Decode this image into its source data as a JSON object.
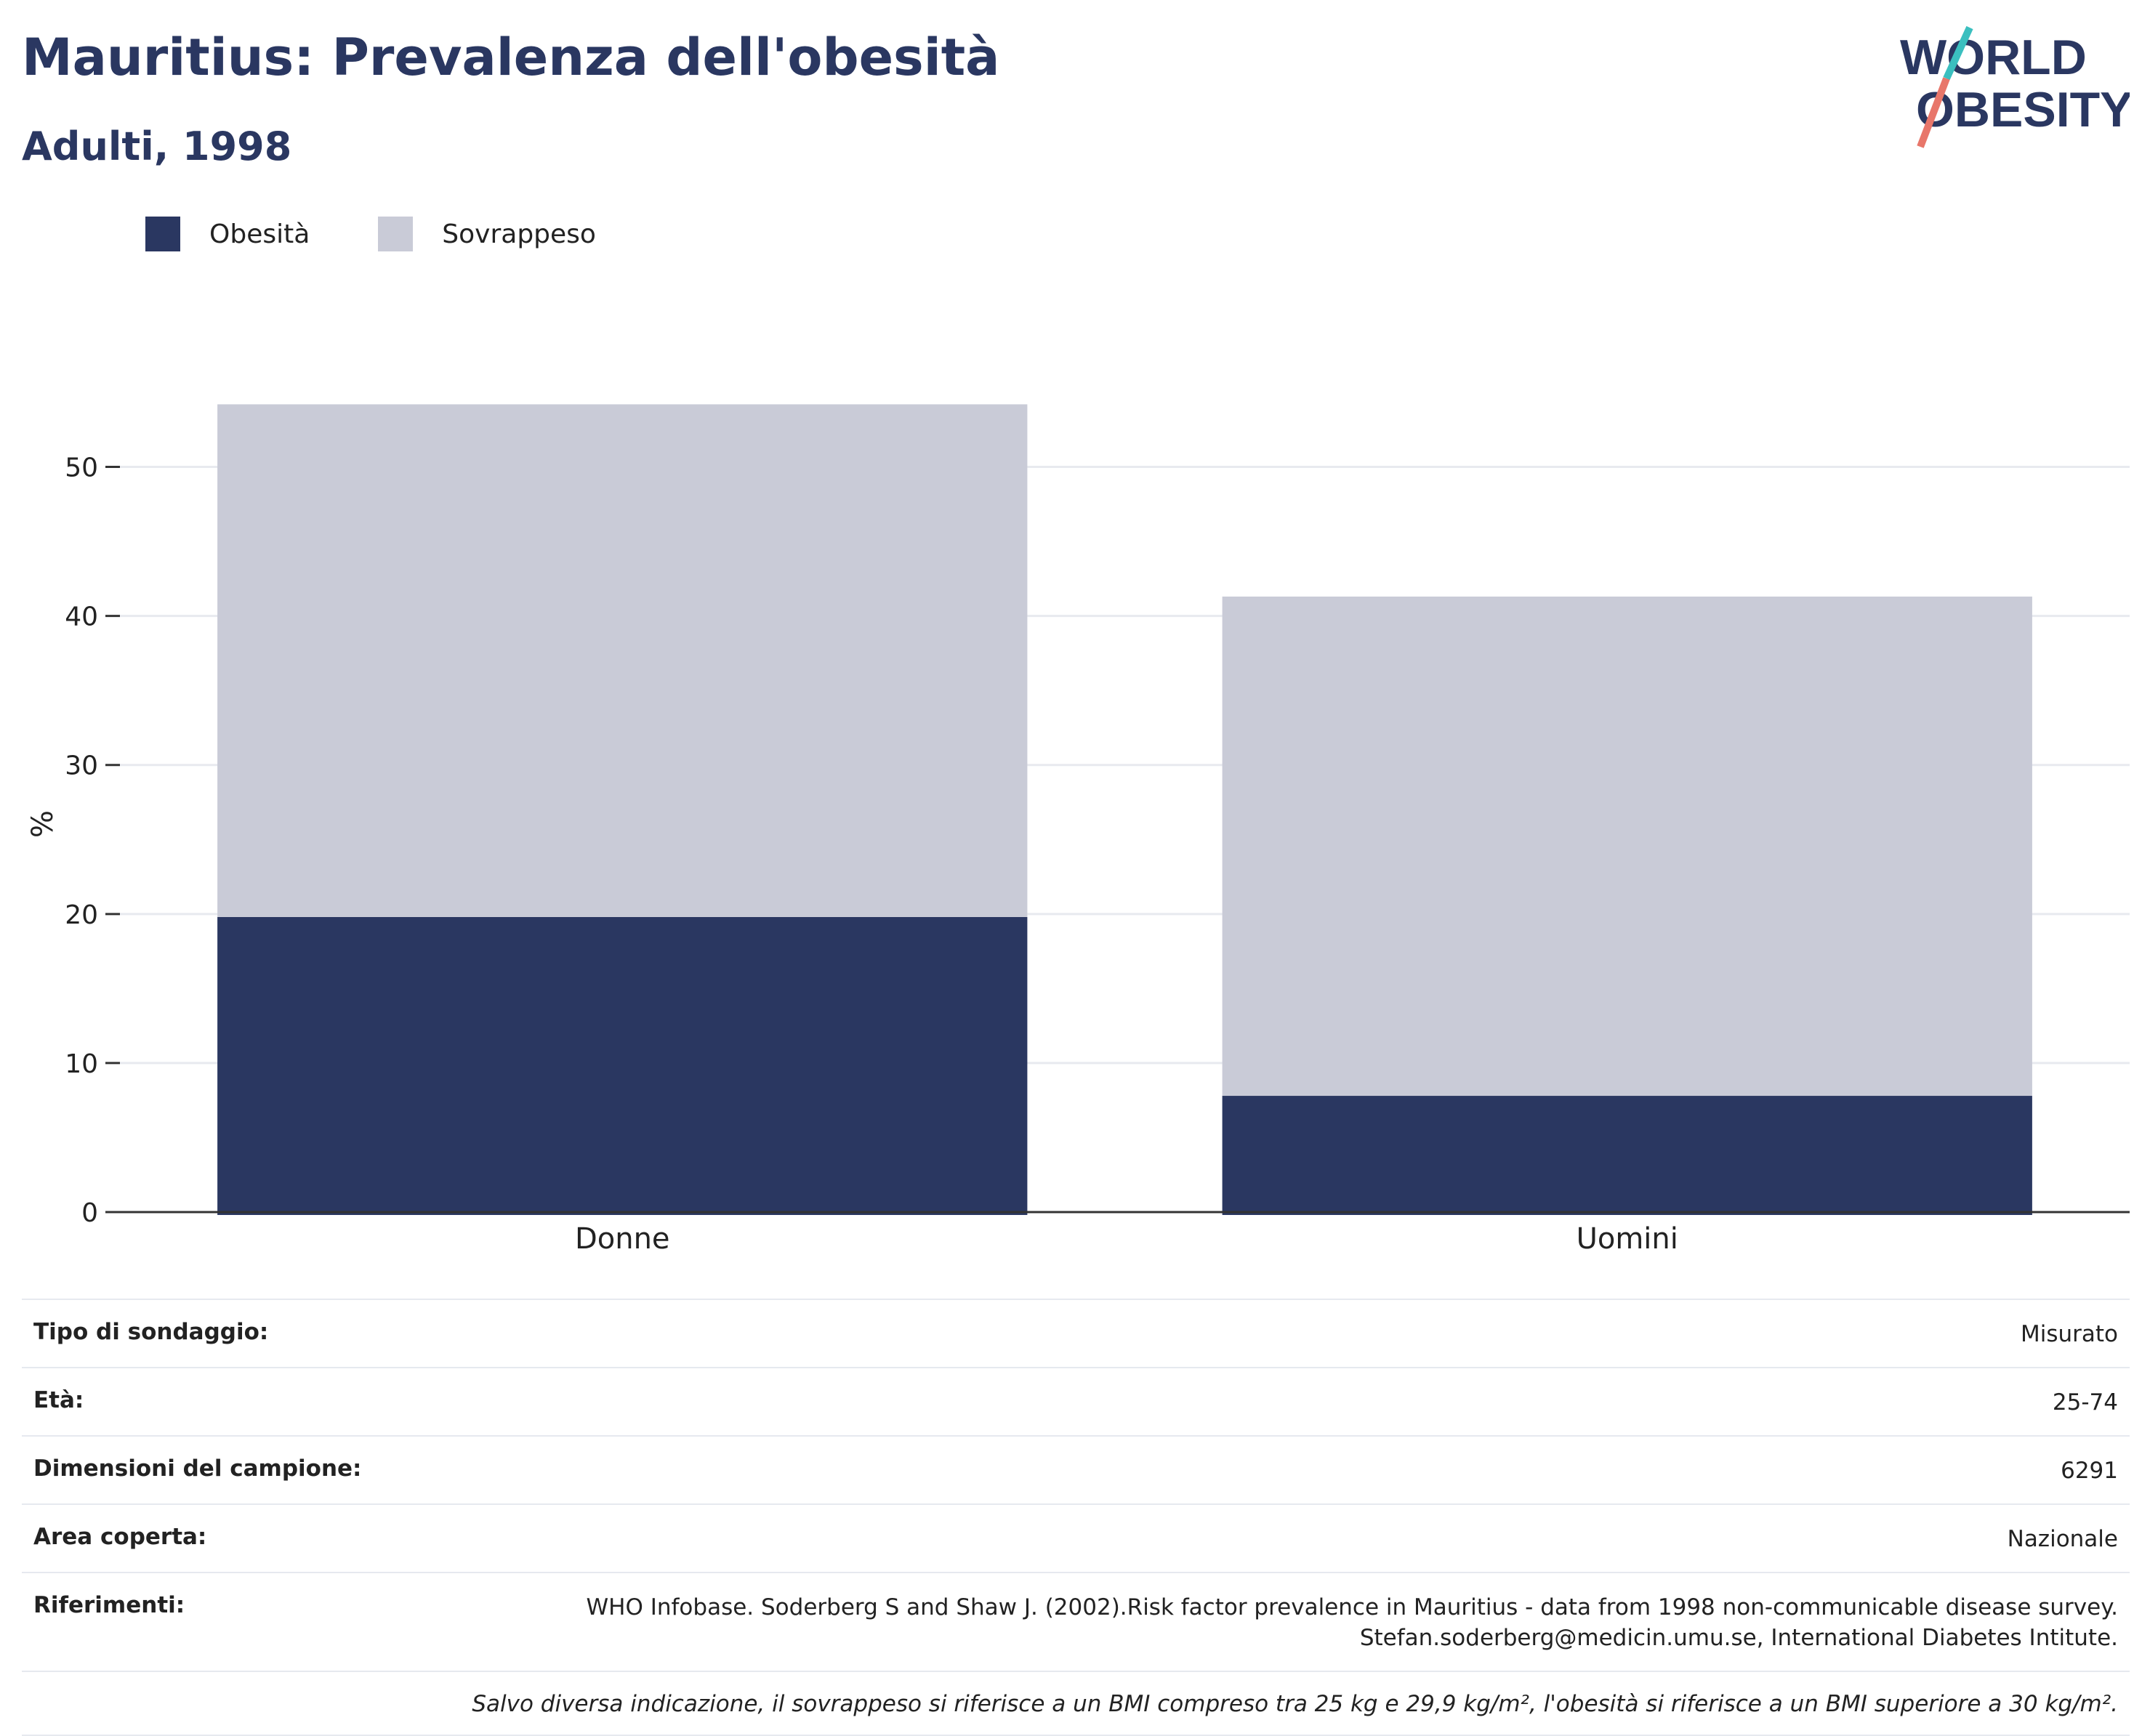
{
  "header": {
    "title": "Mauritius: Prevalenza dell'obesità",
    "subtitle": "Adulti, 1998"
  },
  "logo": {
    "line1": "WORLD",
    "line2": "OBESITY"
  },
  "colors": {
    "obesity": "#2a3761",
    "overweight": "#c9cbd7",
    "title": "#2a3761",
    "logo_teal": "#3bbfbf",
    "logo_coral": "#e8766a"
  },
  "legend": {
    "items": [
      {
        "label": "Obesità"
      },
      {
        "label": "Sovrappeso"
      }
    ]
  },
  "chart_data": {
    "type": "bar",
    "stacked": true,
    "categories": [
      "Donne",
      "Uomini"
    ],
    "series": [
      {
        "name": "Obesità",
        "values": [
          19.8,
          7.8
        ]
      },
      {
        "name": "Sovrappeso",
        "values": [
          34.4,
          33.5
        ]
      }
    ],
    "ylabel": "%",
    "ylim": [
      0,
      55
    ],
    "yticks": [
      0,
      10,
      20,
      30,
      40,
      50
    ],
    "grid": true,
    "legend_position": "top-left"
  },
  "info": {
    "rows": [
      {
        "key": "Tipo di sondaggio:",
        "value": "Misurato"
      },
      {
        "key": "Età:",
        "value": "25-74"
      },
      {
        "key": "Dimensioni del campione:",
        "value": "6291"
      },
      {
        "key": "Area coperta:",
        "value": "Nazionale"
      },
      {
        "key": "Riferimenti:",
        "value_lines": [
          "WHO Infobase. Soderberg S and Shaw J. (2002).Risk factor prevalence in Mauritius - data from 1998 non-communicable disease survey.",
          "Stefan.soderberg@medicin.umu.se, International Diabetes Intitute."
        ]
      }
    ],
    "note": "Salvo diversa indicazione, il sovrappeso si riferisce a un BMI compreso tra 25 kg e 29,9 kg/m², l'obesità si riferisce a un BMI superiore a 30 kg/m²."
  }
}
